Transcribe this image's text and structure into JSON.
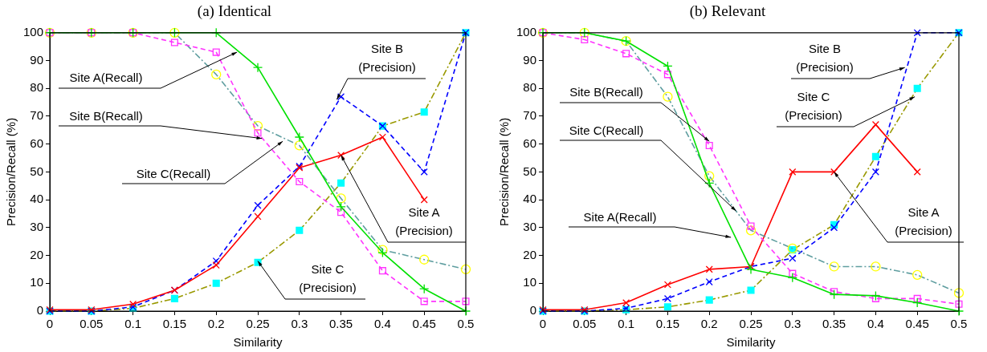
{
  "chart_data": [
    {
      "type": "line",
      "title": "(a) Identical",
      "xlabel": "Similarity",
      "ylabel": "Precision/Recall (%)",
      "x": [
        0,
        0.05,
        0.1,
        0.15,
        0.2,
        0.25,
        0.3,
        0.35,
        0.4,
        0.45,
        0.5
      ],
      "xlim": [
        0,
        0.5
      ],
      "xticks": [
        0,
        0.05,
        0.1,
        0.15,
        0.2,
        0.25,
        0.3,
        0.35,
        0.4,
        0.45,
        0.5
      ],
      "ylim": [
        0,
        100
      ],
      "yticks": [
        0,
        10,
        20,
        30,
        40,
        50,
        60,
        70,
        80,
        90,
        100
      ],
      "grid": false,
      "legend": false,
      "series": [
        {
          "color": "#00e000",
          "marker": "plus",
          "line_style": "solid",
          "values": [
            100,
            100,
            100,
            100,
            100,
            87.5,
            62.5,
            37.5,
            21,
            8,
            0
          ]
        },
        {
          "color": "#ff33ff",
          "marker": "square",
          "line_style": "dashed",
          "values": [
            100,
            100,
            100,
            96.5,
            93,
            64,
            46.5,
            35.5,
            14.5,
            3.5,
            3.5
          ]
        },
        {
          "color": "#5f9ea0",
          "colors": [
            "#ffff00",
            "#ffff00",
            "#ffff00",
            "#ffff00",
            "#ffff00",
            "#ffff00",
            "#ffff00",
            "#ffff00",
            "#ffff00",
            "#ffff00",
            "#ffff00"
          ],
          "marker": "circle",
          "line_style": "dashdot",
          "values": [
            100,
            100,
            100,
            100,
            85,
            66.5,
            59.5,
            40.5,
            22,
            18.5,
            15
          ]
        },
        {
          "color": "#ff0000",
          "marker": "cross",
          "line_style": "solid",
          "values": [
            0.5,
            0.5,
            2.5,
            7.5,
            16.5,
            34,
            51.5,
            56,
            62.5,
            40,
            null
          ]
        },
        {
          "color": "#0000ff",
          "marker": "cross",
          "line_style": "dashed",
          "values": [
            0,
            0,
            1.5,
            7.5,
            18,
            38,
            52,
            77,
            66.5,
            50,
            100
          ]
        },
        {
          "color": "#999900",
          "colors": [
            "#00ffff",
            "#00ffff",
            "#00ffff",
            "#00ffff",
            "#00ffff",
            "#00ffff",
            "#00ffff",
            "#00ffff",
            "#00ffff",
            "#00ffff",
            "#00ffff"
          ],
          "marker": "square",
          "line_style": "dashdot",
          "values": [
            0,
            0,
            1,
            4.5,
            10,
            17.5,
            29,
            46,
            66.5,
            71.5,
            100
          ]
        }
      ],
      "annotations": [
        {
          "text": "Site A(Recall)",
          "x": 0.225,
          "y": 93
        },
        {
          "text": "Site B(Recall)",
          "x": 0.255,
          "y": 62
        },
        {
          "text": "Site C(Recall)",
          "x": 0.28,
          "y": 61
        },
        {
          "text": "Site B (Precision)",
          "x": 0.345,
          "y": 76
        },
        {
          "text": "Site A (Precision)",
          "x": 0.35,
          "y": 56
        },
        {
          "text": "Site C (Precision)",
          "x": 0.25,
          "y": 18
        }
      ]
    },
    {
      "type": "line",
      "title": "(b) Relevant",
      "xlabel": "Similarity",
      "ylabel": "Precision/Recall (%)",
      "x": [
        0,
        0.05,
        0.1,
        0.15,
        0.2,
        0.25,
        0.3,
        0.35,
        0.4,
        0.45,
        0.5
      ],
      "xlim": [
        0,
        0.5
      ],
      "xticks": [
        0,
        0.05,
        0.1,
        0.15,
        0.2,
        0.25,
        0.3,
        0.35,
        0.4,
        0.45,
        0.5
      ],
      "ylim": [
        0,
        100
      ],
      "yticks": [
        0,
        10,
        20,
        30,
        40,
        50,
        60,
        70,
        80,
        90,
        100
      ],
      "grid": false,
      "legend": false,
      "series": [
        {
          "color": "#00e000",
          "marker": "plus",
          "line_style": "solid",
          "values": [
            100,
            100,
            97,
            88,
            46,
            15,
            12,
            6,
            5.5,
            3,
            0
          ]
        },
        {
          "color": "#ff33ff",
          "marker": "square",
          "line_style": "dashed",
          "values": [
            100,
            97.5,
            92.5,
            85,
            59.5,
            30.5,
            13.5,
            7,
            4.5,
            4.5,
            2.5
          ]
        },
        {
          "color": "#5f9ea0",
          "colors": [
            "#ffff00",
            "#ffff00",
            "#ffff00",
            "#ffff00",
            "#ffff00",
            "#ffff00",
            "#ffff00",
            "#ffff00",
            "#ffff00",
            "#ffff00",
            "#ffff00"
          ],
          "marker": "circle",
          "line_style": "dashdot",
          "values": [
            100,
            100,
            97,
            77,
            48.5,
            29,
            22.5,
            16,
            16,
            13,
            6.5
          ]
        },
        {
          "color": "#ff0000",
          "marker": "cross",
          "line_style": "solid",
          "values": [
            0.5,
            0.5,
            3,
            9.5,
            15,
            16,
            50,
            50,
            67,
            50,
            null
          ]
        },
        {
          "color": "#0000ff",
          "marker": "cross",
          "line_style": "dashed",
          "values": [
            0,
            0,
            1,
            4.5,
            10.5,
            16,
            19,
            30,
            50,
            100,
            100
          ]
        },
        {
          "color": "#999900",
          "colors": [
            "#00ffff",
            "#00ffff",
            "#00ffff",
            "#00ffff",
            "#00ffff",
            "#00ffff",
            "#00ffff",
            "#00ffff",
            "#00ffff",
            "#00ffff",
            "#00ffff"
          ],
          "marker": "square",
          "line_style": "dashdot",
          "values": [
            0,
            0,
            0.5,
            1.5,
            4,
            7.5,
            22,
            31,
            55.5,
            80,
            100
          ]
        }
      ],
      "annotations": [
        {
          "text": "Site B(Recall)",
          "x": 0.2,
          "y": 61
        },
        {
          "text": "Site C(Recall)",
          "x": 0.232,
          "y": 36
        },
        {
          "text": "Site A(Recall)",
          "x": 0.226,
          "y": 26.5
        },
        {
          "text": "Site B (Precision)",
          "x": 0.435,
          "y": 87.5
        },
        {
          "text": "Site C (Precision)",
          "x": 0.447,
          "y": 77
        },
        {
          "text": "Site A (Precision)",
          "x": 0.35,
          "y": 50
        }
      ]
    }
  ]
}
